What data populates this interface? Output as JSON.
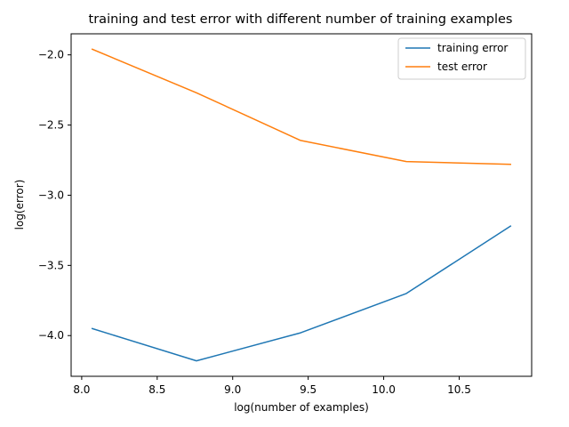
{
  "chart_data": {
    "type": "line",
    "title": "training and test error with different number of training examples",
    "xlabel": "log(number of examples)",
    "ylabel": "log(error)",
    "xlim": [
      7.93,
      10.98
    ],
    "ylim": [
      -4.29,
      -1.85
    ],
    "xticks": [
      8.0,
      8.5,
      9.0,
      9.5,
      10.0,
      10.5
    ],
    "xtick_labels": [
      "8.0",
      "8.5",
      "9.0",
      "9.5",
      "10.0",
      "10.5"
    ],
    "yticks": [
      -2.0,
      -2.5,
      -3.0,
      -3.5,
      -4.0
    ],
    "ytick_labels": [
      "−2.0",
      "−2.5",
      "−3.0",
      "−3.5",
      "−4.0"
    ],
    "grid": false,
    "legend": "top-right",
    "x": [
      8.07,
      8.76,
      9.45,
      10.15,
      10.84
    ],
    "series": [
      {
        "name": "training error",
        "color": "#1f77b4",
        "values": [
          -3.95,
          -4.18,
          -3.98,
          -3.7,
          -3.22
        ]
      },
      {
        "name": "test error",
        "color": "#ff7f0e",
        "values": [
          -1.96,
          -2.27,
          -2.61,
          -2.76,
          -2.78
        ]
      }
    ]
  }
}
